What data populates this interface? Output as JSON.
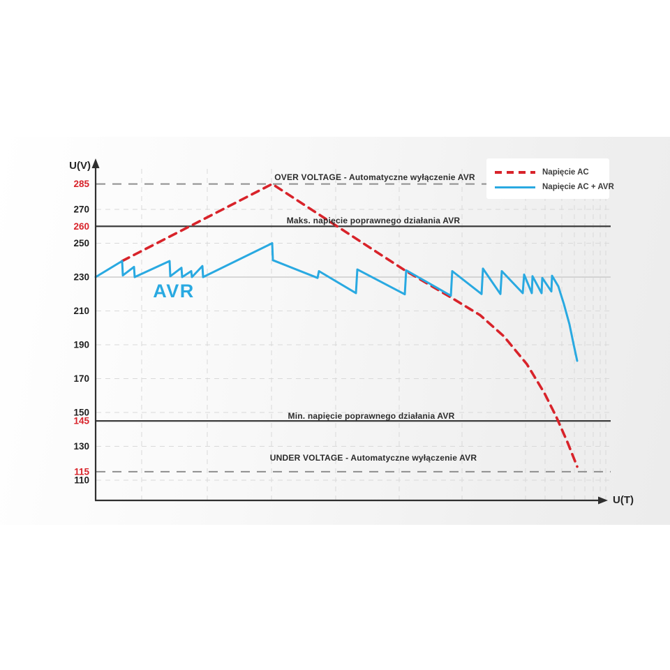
{
  "chart_data": {
    "type": "line",
    "title": "",
    "xlabel": "U(T)",
    "ylabel": "U(V)",
    "x_axis": {
      "label": "U(T)",
      "range": [
        0,
        100
      ],
      "ticks": []
    },
    "y_axis": {
      "label": "U(V)",
      "visible_range": [
        100,
        295
      ],
      "ticks": [
        {
          "value": 285,
          "label": "285",
          "highlight": true
        },
        {
          "value": 270,
          "label": "270",
          "highlight": false
        },
        {
          "value": 260,
          "label": "260",
          "highlight": true
        },
        {
          "value": 250,
          "label": "250",
          "highlight": false
        },
        {
          "value": 230,
          "label": "230",
          "highlight": false
        },
        {
          "value": 210,
          "label": "210",
          "highlight": false
        },
        {
          "value": 190,
          "label": "190",
          "highlight": false
        },
        {
          "value": 170,
          "label": "170",
          "highlight": false
        },
        {
          "value": 150,
          "label": "150",
          "highlight": false
        },
        {
          "value": 145,
          "label": "145",
          "highlight": true
        },
        {
          "value": 130,
          "label": "130",
          "highlight": false
        },
        {
          "value": 115,
          "label": "115",
          "highlight": true
        },
        {
          "value": 110,
          "label": "110",
          "highlight": false
        }
      ]
    },
    "grid": {
      "x_lines_t": [
        8.94,
        21.68,
        34.15,
        46.61,
        58.94,
        71.14,
        83.47,
        87.26,
        90.51,
        92.95,
        94.99,
        96.61,
        97.97,
        99.05
      ],
      "y_lines_v": [
        270,
        250,
        210,
        190,
        170,
        150,
        130,
        110
      ]
    },
    "nominal": {
      "value": 230
    },
    "thresholds": [
      {
        "value": 285,
        "style": "dashed",
        "label": "OVER VOLTAGE - Automatyczne wyłączenie AVR"
      },
      {
        "value": 260,
        "style": "solid",
        "label": "Maks. napięcie poprawnego działania AVR"
      },
      {
        "value": 145,
        "style": "solid",
        "label": "Min. napięcie poprawnego działania AVR"
      },
      {
        "value": 115,
        "style": "dashed",
        "label": "UNDER VOLTAGE - Automatyczne wyłączenie AVR"
      }
    ],
    "series": [
      {
        "name": "Napięcie AC",
        "color": "#d8232a",
        "style": "dashed",
        "points": [
          [
            5.15,
            239.5
          ],
          [
            34.28,
            285
          ],
          [
            45.12,
            263.5
          ],
          [
            60.03,
            234
          ],
          [
            69.51,
            217
          ],
          [
            74.66,
            207.5
          ],
          [
            79.27,
            195
          ],
          [
            83.74,
            178.5
          ],
          [
            87.13,
            161.5
          ],
          [
            89.43,
            147.5
          ],
          [
            91.6,
            132.5
          ],
          [
            93.5,
            118
          ]
        ]
      },
      {
        "name": "Napięcie AC + AVR",
        "color": "#29a9e1",
        "style": "solid",
        "points": [
          [
            0,
            230
          ],
          [
            5.15,
            239.5
          ],
          [
            5.28,
            231
          ],
          [
            7.45,
            236
          ],
          [
            7.59,
            230
          ],
          [
            14.36,
            239.5
          ],
          [
            14.5,
            230.5
          ],
          [
            16.67,
            235.5
          ],
          [
            16.8,
            230
          ],
          [
            18.56,
            233.5
          ],
          [
            18.7,
            230
          ],
          [
            20.73,
            236.5
          ],
          [
            20.87,
            230
          ],
          [
            34.28,
            250
          ],
          [
            34.42,
            240
          ],
          [
            43.09,
            229.5
          ],
          [
            43.36,
            233.5
          ],
          [
            50.54,
            220.5
          ],
          [
            50.81,
            234.5
          ],
          [
            60.03,
            219.8
          ],
          [
            60.3,
            234
          ],
          [
            68.97,
            219
          ],
          [
            69.24,
            233.5
          ],
          [
            74.93,
            220
          ],
          [
            75.2,
            235
          ],
          [
            78.59,
            220
          ],
          [
            78.86,
            233.5
          ],
          [
            82.93,
            220.5
          ],
          [
            83.2,
            231.5
          ],
          [
            84.69,
            220.5
          ],
          [
            84.82,
            230.5
          ],
          [
            86.59,
            220.5
          ],
          [
            86.72,
            229.5
          ],
          [
            88.48,
            221.5
          ],
          [
            88.62,
            230.8
          ],
          [
            89.84,
            224.5
          ],
          [
            90.92,
            214
          ],
          [
            92.01,
            202
          ],
          [
            92.75,
            191
          ],
          [
            93.5,
            180.5
          ]
        ]
      }
    ],
    "annotation": {
      "text": "AVR",
      "color": "#29a9e1"
    },
    "legend_position": "top-right"
  },
  "labels": {
    "y_axis": "U(V)",
    "x_axis": "U(T)"
  },
  "colors": {
    "ac_line": "#d8232a",
    "avr_line": "#29a9e1",
    "threshold_solid": "#3d3d3d",
    "threshold_dashed": "#8e8e8e",
    "gridline": "#d9d9d9",
    "axis": "#2f2f2f",
    "tick_highlight": "#d8232a",
    "background": "#ffffff"
  }
}
